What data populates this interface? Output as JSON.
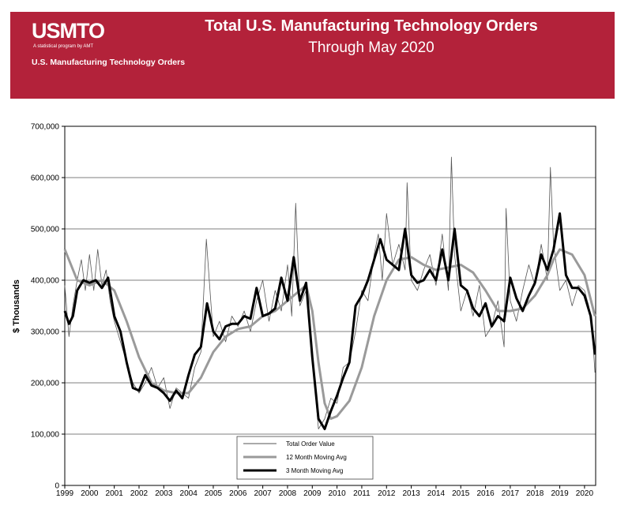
{
  "header": {
    "logo_text": "USMTO",
    "logo_tagline": "A statistical program by AMT",
    "subtitle_left": "U.S. Manufacturing Technology Orders",
    "title": "Total U.S. Manufacturing Technology Orders",
    "subtitle": "Through May 2020"
  },
  "colors": {
    "banner": "#b3223a",
    "thin": "#555555",
    "ma12": "#9a9a9a",
    "ma3": "#000000"
  },
  "chart_data": {
    "type": "line",
    "title": "Total U.S. Manufacturing Technology Orders",
    "ylabel": "$ Thousands",
    "xlabel": "",
    "ylim": [
      0,
      700000
    ],
    "xlim": [
      1999,
      2020.45
    ],
    "y_ticks": [
      0,
      100000,
      200000,
      300000,
      400000,
      500000,
      600000,
      700000
    ],
    "y_tick_labels": [
      "0",
      "100,000",
      "200,000",
      "300,000",
      "400,000",
      "500,000",
      "600,000",
      "700,000"
    ],
    "x_tick_labels": [
      "1999",
      "2000",
      "2001",
      "2002",
      "2003",
      "2004",
      "2005",
      "2006",
      "2007",
      "2008",
      "2009",
      "2010",
      "2011",
      "2012",
      "2013",
      "2014",
      "2015",
      "2016",
      "2017",
      "2018",
      "2019",
      "2020"
    ],
    "grid": true,
    "legend_position": "bottom-center",
    "series": [
      {
        "name": "Total Order Value",
        "x": [
          1999.0,
          1999.17,
          1999.33,
          1999.5,
          1999.67,
          1999.83,
          2000.0,
          2000.17,
          2000.33,
          2000.5,
          2000.67,
          2000.83,
          2001.0,
          2001.25,
          2001.5,
          2001.75,
          2002.0,
          2002.25,
          2002.5,
          2002.75,
          2003.0,
          2003.25,
          2003.5,
          2003.75,
          2004.0,
          2004.25,
          2004.5,
          2004.72,
          2005.0,
          2005.25,
          2005.5,
          2005.75,
          2006.0,
          2006.25,
          2006.5,
          2006.75,
          2007.0,
          2007.25,
          2007.5,
          2007.75,
          2008.0,
          2008.17,
          2008.33,
          2008.5,
          2008.75,
          2009.0,
          2009.25,
          2009.5,
          2009.75,
          2010.0,
          2010.25,
          2010.5,
          2010.75,
          2011.0,
          2011.25,
          2011.5,
          2011.67,
          2011.83,
          2012.0,
          2012.25,
          2012.5,
          2012.75,
          2012.83,
          2013.0,
          2013.25,
          2013.5,
          2013.75,
          2014.0,
          2014.25,
          2014.5,
          2014.62,
          2014.75,
          2015.0,
          2015.25,
          2015.5,
          2015.75,
          2016.0,
          2016.25,
          2016.5,
          2016.75,
          2016.83,
          2017.0,
          2017.25,
          2017.5,
          2017.75,
          2018.0,
          2018.25,
          2018.5,
          2018.62,
          2018.75,
          2019.0,
          2019.25,
          2019.5,
          2019.75,
          2020.0,
          2020.17,
          2020.33,
          2020.42
        ],
        "values": [
          390000,
          290000,
          350000,
          400000,
          440000,
          380000,
          450000,
          380000,
          460000,
          390000,
          420000,
          360000,
          320000,
          280000,
          240000,
          200000,
          180000,
          200000,
          230000,
          190000,
          210000,
          150000,
          190000,
          180000,
          170000,
          230000,
          260000,
          480000,
          290000,
          320000,
          280000,
          330000,
          310000,
          340000,
          300000,
          360000,
          400000,
          320000,
          380000,
          340000,
          430000,
          330000,
          550000,
          350000,
          380000,
          250000,
          110000,
          130000,
          170000,
          160000,
          230000,
          240000,
          300000,
          380000,
          360000,
          450000,
          490000,
          400000,
          530000,
          430000,
          470000,
          420000,
          590000,
          400000,
          380000,
          420000,
          450000,
          390000,
          490000,
          380000,
          640000,
          450000,
          340000,
          380000,
          330000,
          390000,
          290000,
          310000,
          360000,
          270000,
          540000,
          360000,
          320000,
          380000,
          430000,
          390000,
          470000,
          400000,
          620000,
          470000,
          380000,
          400000,
          350000,
          390000,
          380000,
          350000,
          290000,
          220000
        ]
      },
      {
        "name": "12 Month Moving Avg",
        "x": [
          1999.0,
          1999.5,
          2000.0,
          2000.5,
          2001.0,
          2001.5,
          2002.0,
          2002.5,
          2003.0,
          2003.5,
          2004.0,
          2004.5,
          2005.0,
          2005.5,
          2006.0,
          2006.5,
          2007.0,
          2007.5,
          2008.0,
          2008.5,
          2008.75,
          2009.0,
          2009.25,
          2009.5,
          2009.75,
          2010.0,
          2010.5,
          2011.0,
          2011.5,
          2012.0,
          2012.5,
          2013.0,
          2013.5,
          2014.0,
          2014.5,
          2015.0,
          2015.5,
          2016.0,
          2016.5,
          2017.0,
          2017.5,
          2018.0,
          2018.5,
          2018.75,
          2019.0,
          2019.5,
          2020.0,
          2020.42
        ],
        "values": [
          460000,
          400000,
          390000,
          400000,
          380000,
          320000,
          250000,
          200000,
          185000,
          180000,
          180000,
          210000,
          260000,
          290000,
          305000,
          310000,
          330000,
          340000,
          360000,
          380000,
          390000,
          340000,
          240000,
          160000,
          130000,
          135000,
          165000,
          230000,
          330000,
          400000,
          440000,
          445000,
          430000,
          420000,
          425000,
          430000,
          415000,
          380000,
          340000,
          340000,
          345000,
          370000,
          410000,
          440000,
          460000,
          450000,
          410000,
          330000
        ]
      },
      {
        "name": "3 Month Moving Avg",
        "x": [
          1999.0,
          1999.17,
          1999.33,
          1999.5,
          1999.75,
          2000.0,
          2000.25,
          2000.5,
          2000.75,
          2001.0,
          2001.25,
          2001.5,
          2001.75,
          2002.0,
          2002.25,
          2002.5,
          2002.75,
          2003.0,
          2003.25,
          2003.5,
          2003.75,
          2004.0,
          2004.25,
          2004.5,
          2004.75,
          2005.0,
          2005.25,
          2005.5,
          2005.75,
          2006.0,
          2006.25,
          2006.5,
          2006.75,
          2007.0,
          2007.25,
          2007.5,
          2007.75,
          2008.0,
          2008.25,
          2008.5,
          2008.75,
          2009.0,
          2009.25,
          2009.5,
          2009.75,
          2010.0,
          2010.25,
          2010.5,
          2010.75,
          2011.0,
          2011.25,
          2011.5,
          2011.75,
          2012.0,
          2012.25,
          2012.5,
          2012.75,
          2013.0,
          2013.25,
          2013.5,
          2013.75,
          2014.0,
          2014.25,
          2014.5,
          2014.75,
          2015.0,
          2015.25,
          2015.5,
          2015.75,
          2016.0,
          2016.25,
          2016.5,
          2016.75,
          2017.0,
          2017.25,
          2017.5,
          2017.75,
          2018.0,
          2018.25,
          2018.5,
          2018.75,
          2019.0,
          2019.25,
          2019.5,
          2019.75,
          2020.0,
          2020.25,
          2020.42
        ],
        "values": [
          340000,
          315000,
          330000,
          380000,
          400000,
          395000,
          400000,
          385000,
          405000,
          330000,
          300000,
          240000,
          190000,
          185000,
          215000,
          195000,
          190000,
          180000,
          165000,
          185000,
          170000,
          215000,
          255000,
          270000,
          355000,
          300000,
          285000,
          310000,
          315000,
          315000,
          330000,
          325000,
          385000,
          330000,
          335000,
          345000,
          405000,
          360000,
          445000,
          360000,
          395000,
          250000,
          130000,
          110000,
          145000,
          175000,
          210000,
          240000,
          350000,
          370000,
          400000,
          440000,
          480000,
          440000,
          430000,
          420000,
          500000,
          410000,
          395000,
          400000,
          420000,
          400000,
          460000,
          400000,
          500000,
          390000,
          380000,
          345000,
          330000,
          355000,
          310000,
          330000,
          320000,
          405000,
          365000,
          340000,
          370000,
          395000,
          450000,
          420000,
          460000,
          530000,
          410000,
          385000,
          385000,
          370000,
          330000,
          255000
        ]
      }
    ]
  }
}
